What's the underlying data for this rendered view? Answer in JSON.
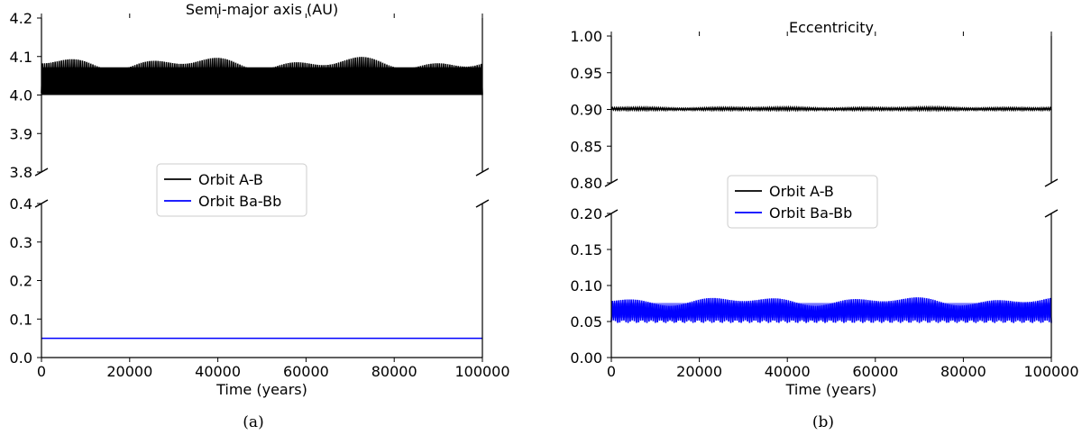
{
  "chart_data": [
    {
      "type": "line",
      "panel_label": "(a)",
      "title": "Semi-major axis (AU)",
      "xlabel": "Time (years)",
      "ylabel": "",
      "xlim": [
        0,
        100000
      ],
      "x_ticks": [
        "0",
        "20000",
        "40000",
        "60000",
        "80000",
        "100000"
      ],
      "broken_y_axis": true,
      "upper_ylim": [
        3.8,
        4.2
      ],
      "upper_y_ticks": [
        "3.8",
        "3.9",
        "4.0",
        "4.1",
        "4.2"
      ],
      "lower_ylim": [
        0.0,
        0.4
      ],
      "lower_y_ticks": [
        "0.0",
        "0.1",
        "0.2",
        "0.3",
        "0.4"
      ],
      "legend": {
        "placement": "center",
        "entries": [
          "Orbit A-B",
          "Orbit Ba-Bb"
        ]
      },
      "series": [
        {
          "name": "Orbit A-B",
          "color": "#000000",
          "axis": "upper",
          "oscillating": true,
          "min": 4.0,
          "max": 4.1,
          "x_range": [
            0,
            100000
          ]
        },
        {
          "name": "Orbit Ba-Bb",
          "color": "#0000ff",
          "axis": "lower",
          "oscillating": false,
          "value": 0.05,
          "x_range": [
            0,
            100000
          ]
        }
      ]
    },
    {
      "type": "line",
      "panel_label": "(b)",
      "title": "Eccentricity",
      "xlabel": "Time (years)",
      "ylabel": "",
      "xlim": [
        0,
        100000
      ],
      "x_ticks": [
        "0",
        "20000",
        "40000",
        "60000",
        "80000",
        "100000"
      ],
      "broken_y_axis": true,
      "upper_ylim": [
        0.8,
        1.0
      ],
      "upper_y_ticks": [
        "0.80",
        "0.85",
        "0.90",
        "0.95",
        "1.00"
      ],
      "lower_ylim": [
        0.0,
        0.2
      ],
      "lower_y_ticks": [
        "0.00",
        "0.05",
        "0.10",
        "0.15",
        "0.20"
      ],
      "legend": {
        "placement": "center",
        "entries": [
          "Orbit A-B",
          "Orbit Ba-Bb"
        ]
      },
      "series": [
        {
          "name": "Orbit A-B",
          "color": "#000000",
          "axis": "upper",
          "oscillating": true,
          "min": 0.899,
          "max": 0.903,
          "x_range": [
            0,
            100000
          ]
        },
        {
          "name": "Orbit Ba-Bb",
          "color": "#0000ff",
          "axis": "lower",
          "oscillating": true,
          "min": 0.048,
          "max": 0.085,
          "x_range": [
            0,
            100000
          ]
        }
      ]
    }
  ]
}
